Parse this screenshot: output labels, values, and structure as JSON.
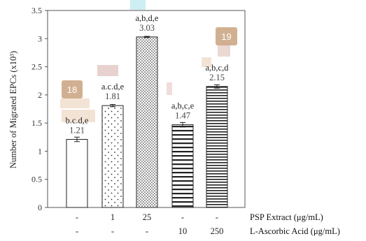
{
  "chart_data": {
    "type": "bar",
    "ylabel": "Number of Migrated EPCs (x10³)",
    "ylim": [
      0,
      3.5
    ],
    "yticks": [
      "0",
      "0.5",
      "1",
      "1.5",
      "2",
      "2.5",
      "3",
      "3.5"
    ],
    "grid": false,
    "bars": [
      {
        "value": 1.21,
        "error": 0.04,
        "label": "1.21",
        "significance": "b.c.d,e",
        "pattern": "blank"
      },
      {
        "value": 1.81,
        "error": 0.02,
        "label": "1.81",
        "significance": "a.c.d,e",
        "pattern": "sparse-dots"
      },
      {
        "value": 3.03,
        "error": 0.01,
        "label": "3.03",
        "significance": "a,b,d,e",
        "pattern": "dense-dots"
      },
      {
        "value": 1.47,
        "error": 0.04,
        "label": "1.47",
        "significance": "a,b,c,e",
        "pattern": "wide-stripes"
      },
      {
        "value": 2.15,
        "error": 0.03,
        "label": "2.15",
        "significance": "a,b,c,d",
        "pattern": "narrow-stripes"
      }
    ],
    "treatment_rows": [
      {
        "name": "PSP Extract (μg/mL)",
        "values": [
          "-",
          "1",
          "25",
          "-",
          "-"
        ]
      },
      {
        "name": "L-Ascorbic Acid (μg/mL)",
        "values": [
          "-",
          "-",
          "-",
          "10",
          "250"
        ]
      }
    ]
  },
  "badges": [
    "18",
    "19"
  ],
  "colors": {
    "axis": "#555555",
    "bar_edge": "#222222",
    "badge": "#c9a27e",
    "highlight": "#f3e3d5",
    "cyan_block": "#cdeef2",
    "rose_block": "#e7d2d0"
  }
}
